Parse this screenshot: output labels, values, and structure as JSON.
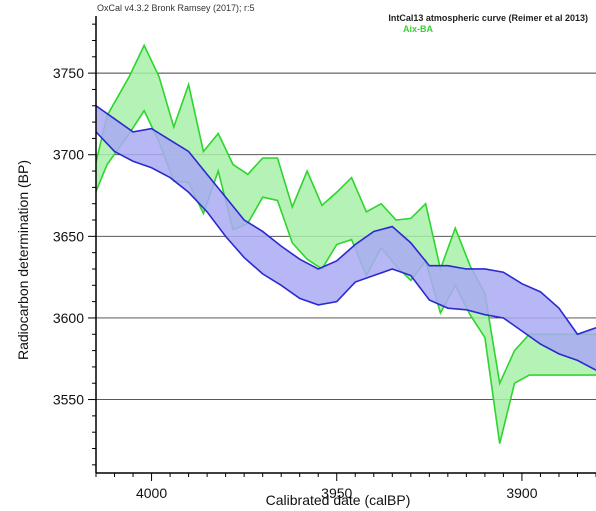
{
  "header": "OxCal v4.3.2 Bronk Ramsey (2017); r:5",
  "chart_data": {
    "type": "area",
    "xlabel": "Calibrated date (calBP)",
    "ylabel": "Radiocarbon determination (BP)",
    "xlim": [
      4015,
      3880
    ],
    "ylim": [
      3505,
      3785
    ],
    "x_inverted": true,
    "x_ticks": [
      4000,
      3950,
      3900
    ],
    "y_ticks": [
      3550,
      3600,
      3650,
      3700,
      3750
    ],
    "grid": "horizontal",
    "legend_position": "top-right",
    "colors": {
      "intcal_fill": "#aaaaf4",
      "intcal_line": "#2a2ad0",
      "aix_fill": "#a8f0a8",
      "aix_line": "#2ed52e",
      "grid": "#000000",
      "legend_intcal": "#222222",
      "legend_aix": "#37d037"
    },
    "series": [
      {
        "name": "IntCal13 atmospheric curve (Reimer et al 2013)",
        "x": [
          4015,
          4010,
          4005,
          4000,
          3995,
          3990,
          3985,
          3980,
          3975,
          3970,
          3965,
          3960,
          3955,
          3950,
          3945,
          3940,
          3935,
          3930,
          3925,
          3920,
          3915,
          3910,
          3905,
          3900,
          3895,
          3890,
          3885,
          3880
        ],
        "upper": [
          3730,
          3722,
          3714,
          3716,
          3709,
          3702,
          3688,
          3674,
          3660,
          3653,
          3644,
          3636,
          3630,
          3635,
          3645,
          3653,
          3656,
          3646,
          3632,
          3632,
          3630,
          3630,
          3628,
          3621,
          3616,
          3606,
          3590,
          3594
        ],
        "lower": [
          3714,
          3702,
          3696,
          3692,
          3686,
          3677,
          3665,
          3650,
          3637,
          3627,
          3620,
          3612,
          3608,
          3610,
          3622,
          3626,
          3630,
          3626,
          3611,
          3606,
          3605,
          3602,
          3600,
          3592,
          3584,
          3578,
          3574,
          3568
        ]
      },
      {
        "name": "Aix-BA",
        "x": [
          4016,
          4012,
          4006,
          4002,
          3998,
          3994,
          3990,
          3986,
          3982,
          3978,
          3974,
          3970,
          3966,
          3962,
          3958,
          3954,
          3950,
          3946,
          3942,
          3938,
          3934,
          3930,
          3926,
          3922,
          3918,
          3914,
          3910,
          3906,
          3902,
          3898,
          3894,
          3890,
          3886,
          3883,
          3880
        ],
        "upper": [
          3686,
          3724,
          3748,
          3767,
          3748,
          3717,
          3743,
          3702,
          3713,
          3694,
          3688,
          3698,
          3698,
          3668,
          3690,
          3669,
          3677,
          3686,
          3665,
          3670,
          3660,
          3661,
          3670,
          3630,
          3655,
          3632,
          3615,
          3560,
          3580,
          3590,
          3590,
          3590,
          3590,
          3590,
          3590
        ],
        "lower": [
          3672,
          3694,
          3713,
          3727,
          3708,
          3684,
          3683,
          3664,
          3690,
          3654,
          3658,
          3674,
          3672,
          3646,
          3636,
          3630,
          3645,
          3648,
          3626,
          3643,
          3632,
          3623,
          3635,
          3603,
          3620,
          3602,
          3588,
          3523,
          3560,
          3565,
          3565,
          3565,
          3565,
          3565,
          3565
        ]
      }
    ]
  }
}
